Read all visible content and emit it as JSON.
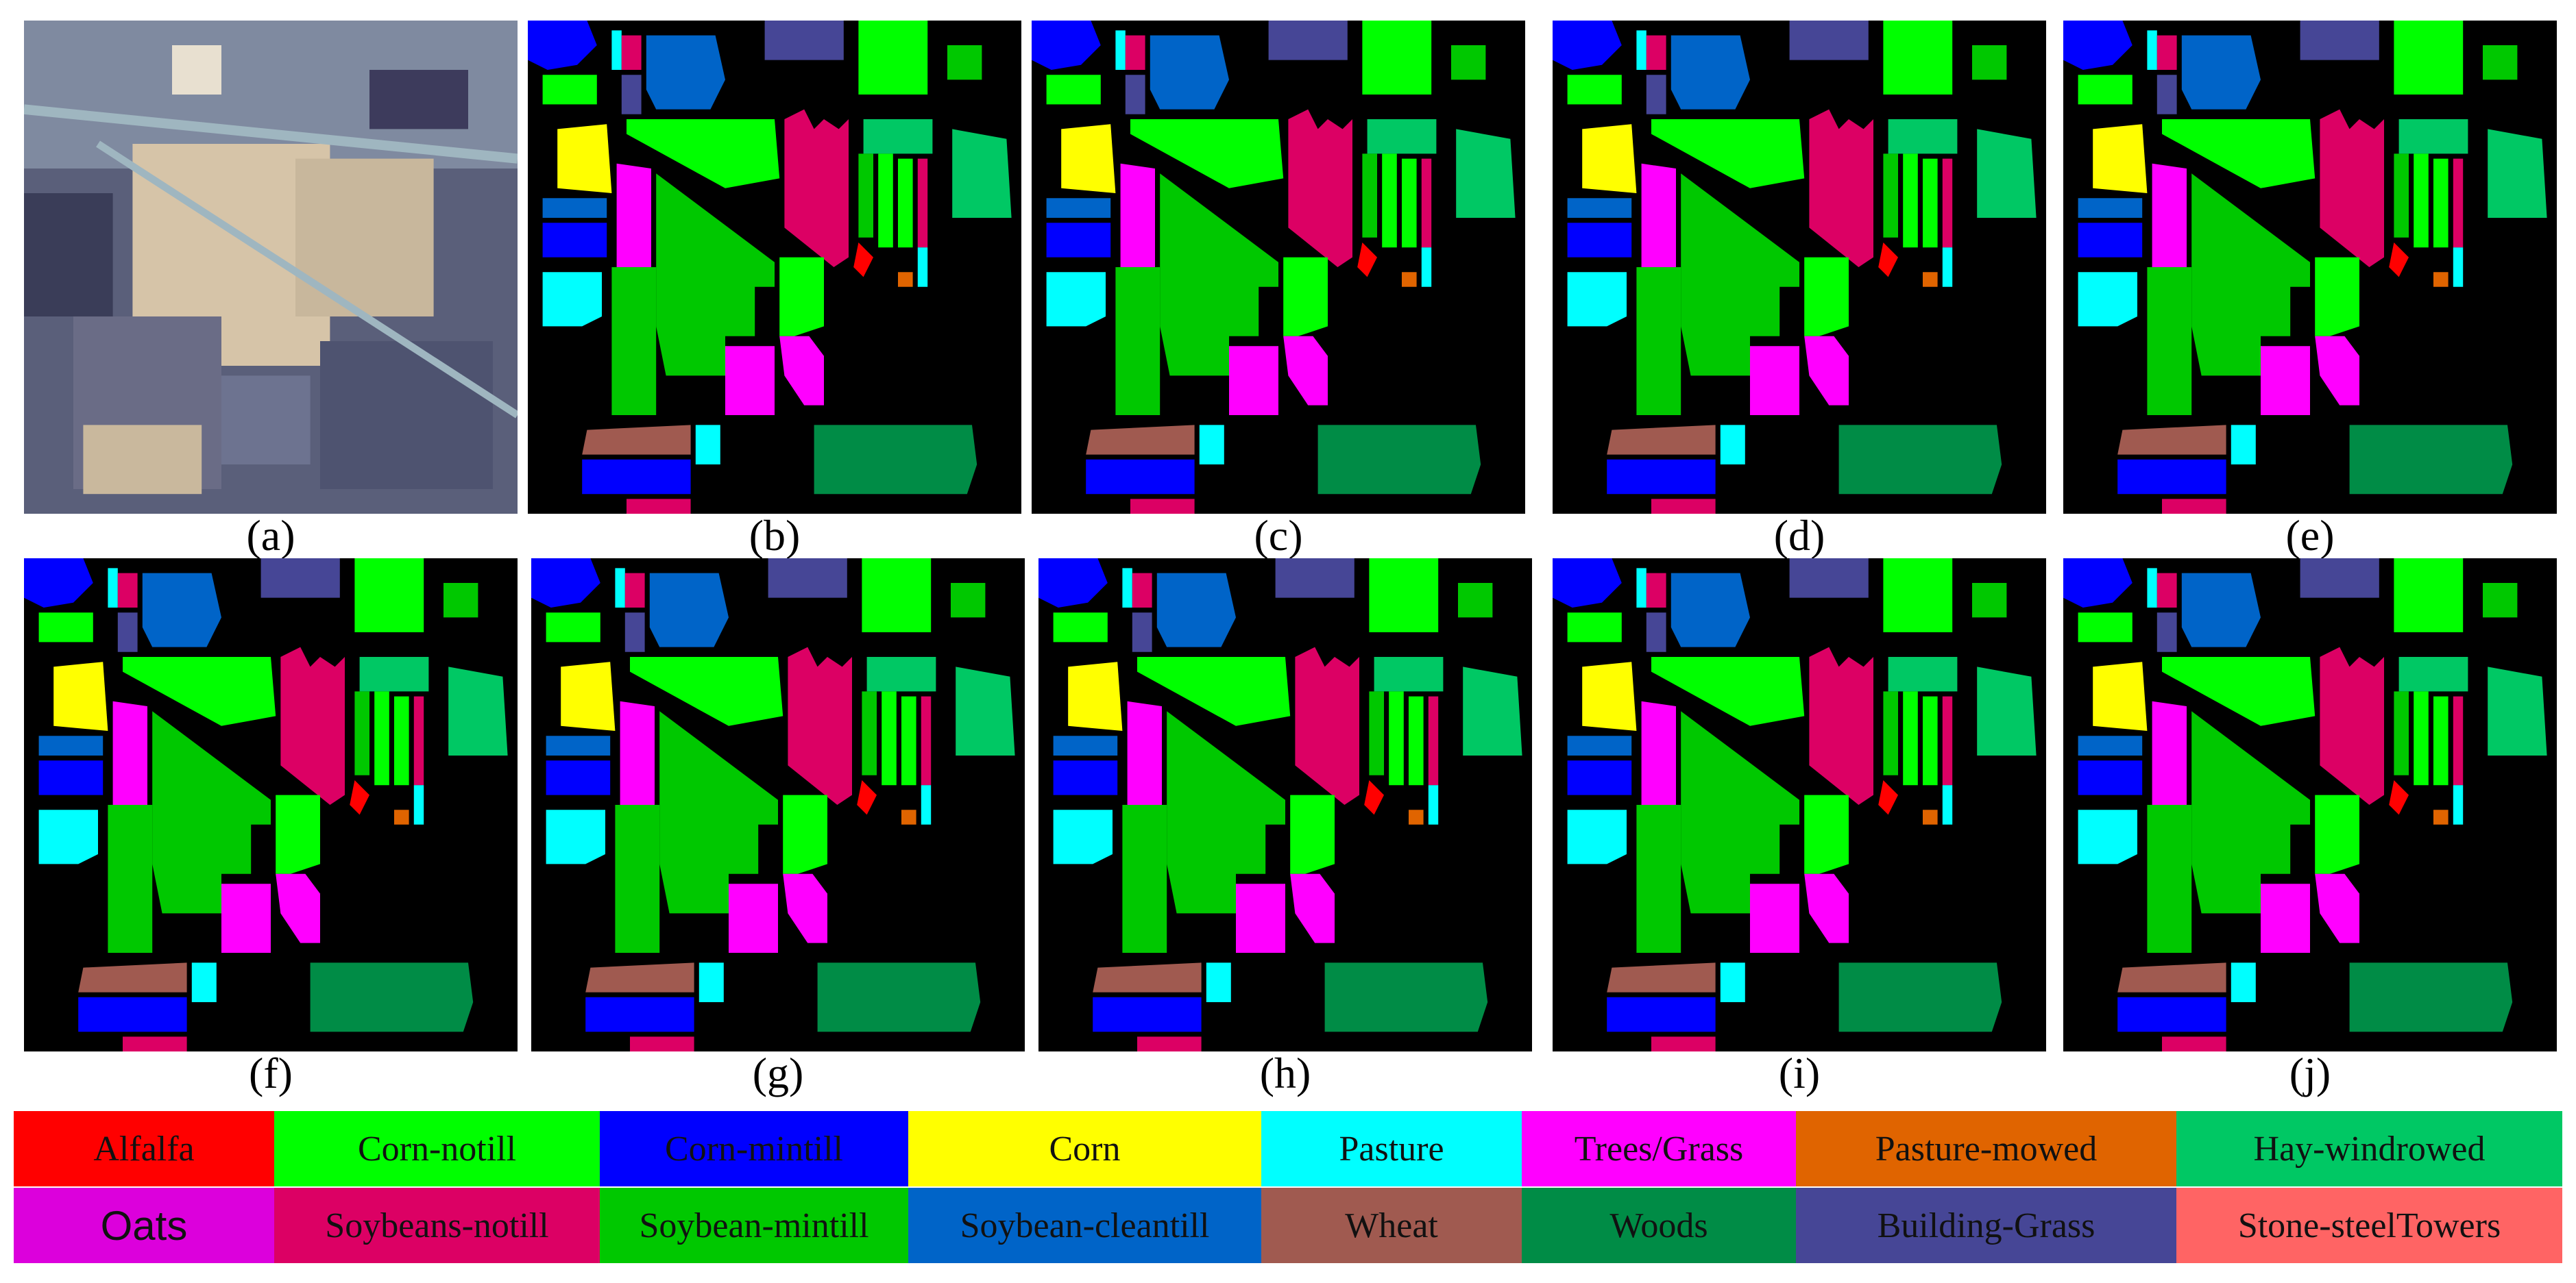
{
  "panels": [
    {
      "id": "a",
      "caption": "(a)",
      "kind": "false-color-image"
    },
    {
      "id": "b",
      "caption": "(b)",
      "kind": "classification-map"
    },
    {
      "id": "c",
      "caption": "(c)",
      "kind": "classification-map"
    },
    {
      "id": "d",
      "caption": "(d)",
      "kind": "classification-map"
    },
    {
      "id": "e",
      "caption": "(e)",
      "kind": "classification-map"
    },
    {
      "id": "f",
      "caption": "(f)",
      "kind": "classification-map"
    },
    {
      "id": "g",
      "caption": "(g)",
      "kind": "classification-map"
    },
    {
      "id": "h",
      "caption": "(h)",
      "kind": "classification-map"
    },
    {
      "id": "i",
      "caption": "(i)",
      "kind": "classification-map"
    },
    {
      "id": "j",
      "caption": "(j)",
      "kind": "classification-map"
    }
  ],
  "legend": {
    "items": [
      {
        "label": "Alfalfa",
        "color": "#ff0000"
      },
      {
        "label": "Corn-notill",
        "color": "#00ff00"
      },
      {
        "label": "Corn-mintill",
        "color": "#0000ff"
      },
      {
        "label": "Corn",
        "color": "#ffff00"
      },
      {
        "label": "Pasture",
        "color": "#00ffff"
      },
      {
        "label": "Trees/Grass",
        "color": "#ff00ff"
      },
      {
        "label": "Pasture-mowed",
        "color": "#e06400"
      },
      {
        "label": "Hay-windrowed",
        "color": "#00c864"
      },
      {
        "label": "Oats",
        "color": "#dc00dc"
      },
      {
        "label": "Soybeans-notill",
        "color": "#dc0064"
      },
      {
        "label": "Soybean-mintill",
        "color": "#00c800"
      },
      {
        "label": "Soybean-cleantill",
        "color": "#0064c8"
      },
      {
        "label": "Wheat",
        "color": "#a05a50"
      },
      {
        "label": "Woods",
        "color": "#008c46"
      },
      {
        "label": "Building-Grass",
        "color": "#464696"
      },
      {
        "label": "Stone-steelTowers",
        "color": "#ff6464"
      }
    ]
  }
}
